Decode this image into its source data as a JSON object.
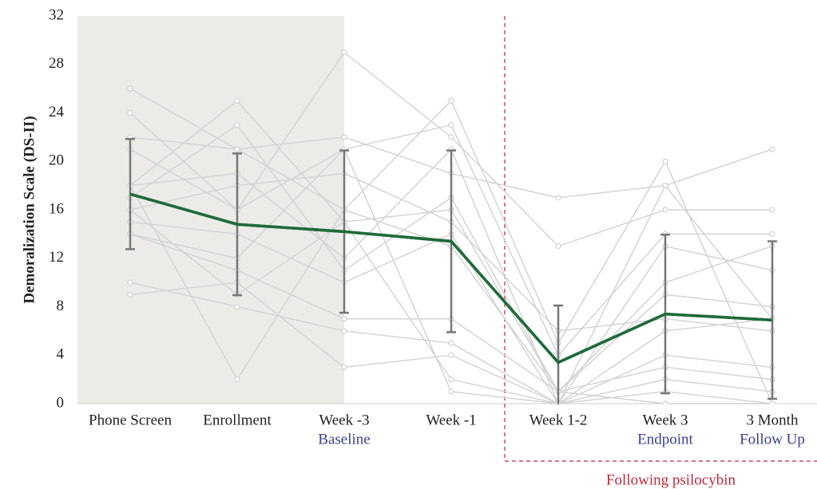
{
  "chart_data": {
    "type": "line",
    "ylabel": "Demoralization Scale (DS-II)",
    "categories": [
      "Phone Screen",
      "Enrollment",
      "Week -3",
      "Week -1",
      "Week 1-2",
      "Week 3",
      "3 Month"
    ],
    "category_sublabels": [
      null,
      null,
      "Baseline",
      null,
      null,
      "Endpoint",
      "Follow Up"
    ],
    "sublabel_color": "#3b3f8f",
    "ylim": [
      0,
      32
    ],
    "yticks": [
      0,
      4,
      8,
      12,
      16,
      20,
      24,
      28,
      32
    ],
    "grid": false,
    "shaded_categories": [
      0,
      2
    ],
    "shade_color": "#ecebe8",
    "annotation": {
      "text": "Following psilocybin",
      "from_category": 4,
      "color": "#c0283a"
    },
    "series": [
      {
        "color": "#d4d4d4",
        "values": [
          26,
          21,
          22,
          19,
          17,
          18,
          21
        ]
      },
      {
        "color": "#d4d4d4",
        "values": [
          24,
          16,
          29,
          22,
          13,
          16,
          16
        ]
      },
      {
        "color": "#d4d4d4",
        "values": [
          22,
          21,
          16,
          25,
          5,
          20,
          0
        ]
      },
      {
        "color": "#d4d4d4",
        "values": [
          21,
          16,
          21,
          23,
          4,
          14,
          14
        ]
      },
      {
        "color": "#d4d4d4",
        "values": [
          18,
          25,
          15,
          16,
          1,
          10,
          13
        ]
      },
      {
        "color": "#d4d4d4",
        "values": [
          18,
          19,
          12,
          21,
          0,
          13,
          11
        ]
      },
      {
        "color": "#d4d4d4",
        "values": [
          17,
          23,
          11,
          17,
          1,
          9,
          8
        ]
      },
      {
        "color": "#d4d4d4",
        "values": [
          16,
          18,
          19,
          15,
          6,
          7,
          6
        ]
      },
      {
        "color": "#d4d4d4",
        "values": [
          15,
          14,
          10,
          14,
          0,
          4,
          3
        ]
      },
      {
        "color": "#d4d4d4",
        "values": [
          14,
          11,
          7,
          7,
          1,
          3,
          2
        ]
      },
      {
        "color": "#d4d4d4",
        "values": [
          10,
          8,
          6,
          5,
          0,
          2,
          1
        ]
      },
      {
        "color": "#d4d4d4",
        "values": [
          9,
          10,
          3,
          4,
          0,
          6,
          7
        ]
      },
      {
        "color": "#d4d4d4",
        "values": [
          18,
          2,
          16,
          13,
          1,
          0,
          0
        ]
      },
      {
        "color": "#d4d4d4",
        "values": [
          16,
          9,
          15,
          2,
          0,
          1,
          0
        ]
      },
      {
        "color": "#d4d4d4",
        "values": [
          14,
          12,
          21,
          1,
          0,
          18,
          7
        ]
      },
      {
        "color": "#1e6b3a",
        "error_color": "#777777",
        "values": [
          17.3,
          14.8,
          14.2,
          13.4,
          3.4,
          7.4,
          6.9
        ],
        "errors": [
          4.55,
          5.85,
          6.7,
          7.5,
          4.7,
          6.55,
          6.5
        ]
      }
    ]
  }
}
